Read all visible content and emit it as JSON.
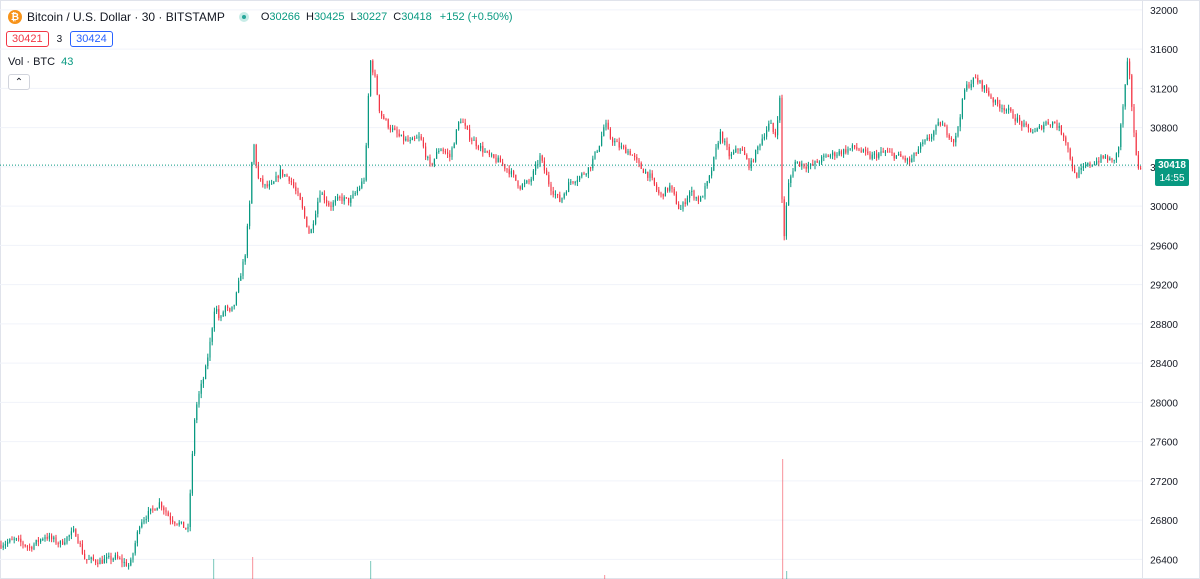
{
  "header": {
    "logo_glyph": "₿",
    "symbol_title": "Bitcoin / U.S. Dollar · 30 · BITSTAMP",
    "ohlc": {
      "open_label": "O",
      "open": "30266",
      "high_label": "H",
      "high": "30425",
      "low_label": "L",
      "low": "30227",
      "close_label": "C",
      "close": "30418",
      "change": "+152 (+0.50%)"
    },
    "sell_price": "30421",
    "spread": "3",
    "buy_price": "30424",
    "volume_label": "Vol · BTC",
    "volume_value": "43",
    "collapse_icon": "chevron-up-icon",
    "collapse_glyph": "⌃"
  },
  "last_price": {
    "price": "30418",
    "countdown": "14:55"
  },
  "colors": {
    "up": "#089981",
    "down": "#f23645",
    "grid": "#f0f3fa",
    "axis_text": "#131722",
    "price_line": "#089981"
  },
  "chart_data": {
    "type": "candlestick",
    "ylim": [
      26200,
      32100
    ],
    "yticks": [
      26400,
      26800,
      27200,
      27600,
      28000,
      28400,
      28800,
      29200,
      29600,
      30000,
      30400,
      30800,
      31200,
      31600,
      32000
    ],
    "ytick_labels": [
      "26400",
      "26800",
      "27200",
      "27600",
      "28000",
      "28400",
      "28800",
      "29200",
      "29600",
      "30000",
      "30400",
      "30800",
      "31200",
      "31600",
      "32000"
    ],
    "last_price": 30418,
    "close_path": [
      [
        0,
        26550
      ],
      [
        15,
        26600
      ],
      [
        30,
        26520
      ],
      [
        45,
        26640
      ],
      [
        60,
        26560
      ],
      [
        75,
        26690
      ],
      [
        85,
        26400
      ],
      [
        100,
        26380
      ],
      [
        115,
        26420
      ],
      [
        130,
        26330
      ],
      [
        140,
        26780
      ],
      [
        150,
        26880
      ],
      [
        160,
        26980
      ],
      [
        170,
        26820
      ],
      [
        180,
        26760
      ],
      [
        188,
        26700
      ],
      [
        195,
        27900
      ],
      [
        200,
        28120
      ],
      [
        205,
        28300
      ],
      [
        210,
        28600
      ],
      [
        215,
        29000
      ],
      [
        220,
        28820
      ],
      [
        225,
        28980
      ],
      [
        230,
        28900
      ],
      [
        235,
        29020
      ],
      [
        240,
        29280
      ],
      [
        245,
        29500
      ],
      [
        250,
        30050
      ],
      [
        253,
        30700
      ],
      [
        258,
        30280
      ],
      [
        265,
        30200
      ],
      [
        272,
        30200
      ],
      [
        280,
        30350
      ],
      [
        290,
        30280
      ],
      [
        300,
        30050
      ],
      [
        310,
        29700
      ],
      [
        320,
        30150
      ],
      [
        330,
        30000
      ],
      [
        340,
        30080
      ],
      [
        350,
        30050
      ],
      [
        360,
        30200
      ],
      [
        365,
        30300
      ],
      [
        370,
        31500
      ],
      [
        375,
        31300
      ],
      [
        380,
        30950
      ],
      [
        390,
        30800
      ],
      [
        400,
        30700
      ],
      [
        410,
        30650
      ],
      [
        420,
        30700
      ],
      [
        430,
        30400
      ],
      [
        440,
        30600
      ],
      [
        450,
        30500
      ],
      [
        460,
        30900
      ],
      [
        470,
        30700
      ],
      [
        480,
        30600
      ],
      [
        490,
        30500
      ],
      [
        500,
        30450
      ],
      [
        510,
        30350
      ],
      [
        520,
        30200
      ],
      [
        530,
        30250
      ],
      [
        540,
        30500
      ],
      [
        550,
        30200
      ],
      [
        560,
        30050
      ],
      [
        570,
        30250
      ],
      [
        580,
        30300
      ],
      [
        590,
        30400
      ],
      [
        600,
        30650
      ],
      [
        605,
        30850
      ],
      [
        610,
        30700
      ],
      [
        620,
        30600
      ],
      [
        630,
        30550
      ],
      [
        640,
        30400
      ],
      [
        650,
        30300
      ],
      [
        660,
        30100
      ],
      [
        670,
        30200
      ],
      [
        680,
        29950
      ],
      [
        690,
        30150
      ],
      [
        700,
        30050
      ],
      [
        710,
        30300
      ],
      [
        720,
        30750
      ],
      [
        730,
        30500
      ],
      [
        740,
        30600
      ],
      [
        750,
        30400
      ],
      [
        760,
        30650
      ],
      [
        770,
        30850
      ],
      [
        775,
        30700
      ],
      [
        780,
        31100
      ],
      [
        783,
        29550
      ],
      [
        788,
        30200
      ],
      [
        795,
        30450
      ],
      [
        810,
        30400
      ],
      [
        825,
        30500
      ],
      [
        840,
        30550
      ],
      [
        855,
        30600
      ],
      [
        870,
        30500
      ],
      [
        885,
        30550
      ],
      [
        900,
        30500
      ],
      [
        910,
        30450
      ],
      [
        920,
        30600
      ],
      [
        930,
        30700
      ],
      [
        940,
        30850
      ],
      [
        955,
        30650
      ],
      [
        965,
        31200
      ],
      [
        975,
        31300
      ],
      [
        985,
        31200
      ],
      [
        995,
        31050
      ],
      [
        1005,
        31000
      ],
      [
        1015,
        30900
      ],
      [
        1025,
        30800
      ],
      [
        1035,
        30750
      ],
      [
        1045,
        30850
      ],
      [
        1055,
        30850
      ],
      [
        1065,
        30700
      ],
      [
        1075,
        30300
      ],
      [
        1085,
        30400
      ],
      [
        1095,
        30450
      ],
      [
        1105,
        30500
      ],
      [
        1112,
        30450
      ],
      [
        1118,
        30550
      ],
      [
        1125,
        31200
      ],
      [
        1128,
        31500
      ],
      [
        1132,
        31000
      ],
      [
        1137,
        30400
      ],
      [
        1141,
        30418
      ]
    ]
  }
}
